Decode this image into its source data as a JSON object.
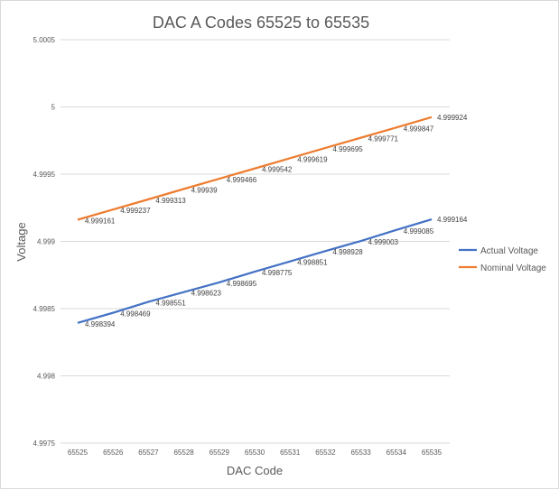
{
  "chart_data": {
    "type": "line",
    "title": "DAC A Codes 65525 to 65535",
    "xlabel": "DAC Code",
    "ylabel": "Voltage",
    "categories": [
      "65525",
      "65526",
      "65527",
      "65528",
      "65529",
      "65530",
      "65531",
      "65532",
      "65533",
      "65534",
      "65535"
    ],
    "yticks": [
      "5.0005",
      "5",
      "4.9995",
      "4.999",
      "4.9985",
      "4.998",
      "4.9975"
    ],
    "ylim": [
      4.9975,
      5.0005
    ],
    "grid": true,
    "legend_position": "right",
    "series": [
      {
        "name": "Actual Voltage",
        "color": "#4472C4",
        "values": [
          4.998394,
          4.998469,
          4.998551,
          4.998623,
          4.998695,
          4.998775,
          4.998851,
          4.998928,
          4.999003,
          4.999085,
          4.999164
        ],
        "labels": [
          "4.998394",
          "4.998469",
          "4.998551",
          "4.998623",
          "4.998695",
          "4.998775",
          "4.998851",
          "4.998928",
          "4.999003",
          "4.999085",
          "4.999164"
        ]
      },
      {
        "name": "Nominal Voltage",
        "color": "#ED7D31",
        "values": [
          4.999161,
          4.999237,
          4.999313,
          4.99939,
          4.999466,
          4.999542,
          4.999619,
          4.999695,
          4.999771,
          4.999847,
          4.999924
        ],
        "labels": [
          "4.999161",
          "4.999237",
          "4.999313",
          "4.99939",
          "4.999466",
          "4.999542",
          "4.999619",
          "4.999695",
          "4.999771",
          "4.999847",
          "4.999924"
        ]
      }
    ]
  }
}
